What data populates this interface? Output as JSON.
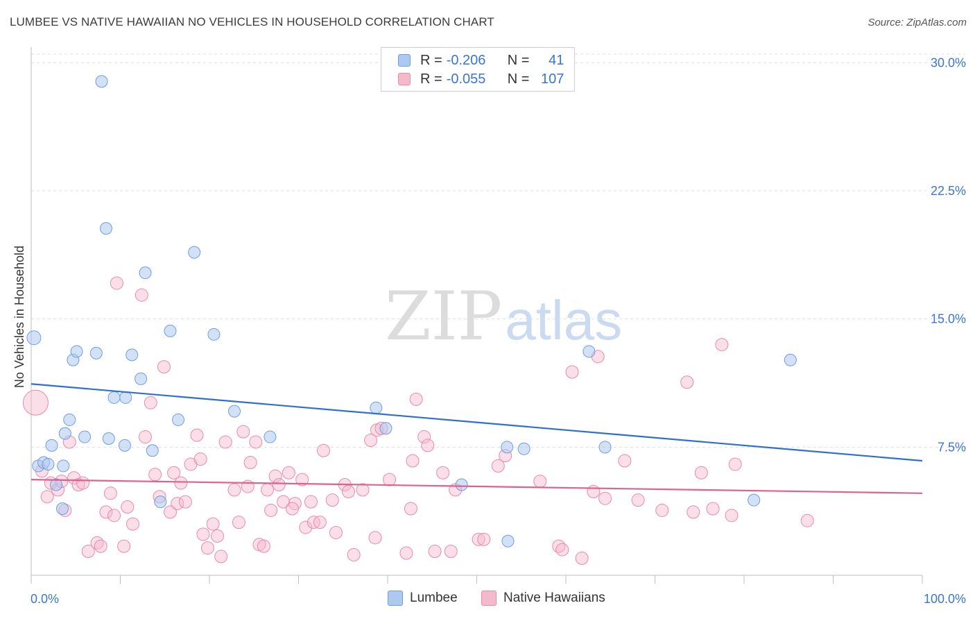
{
  "title": "LUMBEE VS NATIVE HAWAIIAN NO VEHICLES IN HOUSEHOLD CORRELATION CHART",
  "source": "Source: ZipAtlas.com",
  "watermark": {
    "zip": "ZIP",
    "atlas": "atlas"
  },
  "legend": {
    "rows": [
      {
        "r_label": "R = ",
        "r_value": "-0.206",
        "n_label": "N = ",
        "n_value": "41"
      },
      {
        "r_label": "R = ",
        "r_value": "-0.055",
        "n_label": "N = ",
        "n_value": "107"
      }
    ]
  },
  "bottom_legend": {
    "series1": "Lumbee",
    "series2": "Native Hawaiians"
  },
  "colors": {
    "lumbee_fill": "#aec9f0",
    "lumbee_stroke": "#6d9de0",
    "lumbee_line": "#2e6fd0",
    "hawaiian_fill": "#f5b9cc",
    "hawaiian_stroke": "#e98aa9",
    "hawaiian_line": "#e0608e",
    "axis_text": "#3a76d1",
    "grid": "#dedede"
  },
  "chart_data": {
    "type": "scatter",
    "title": "LUMBEE VS NATIVE HAWAIIAN NO VEHICLES IN HOUSEHOLD CORRELATION CHART",
    "xlabel": "",
    "ylabel": "No Vehicles in Household",
    "xlim": [
      0,
      100
    ],
    "ylim": [
      0,
      30.5
    ],
    "x_tick_labels": [
      "0.0%",
      "100.0%"
    ],
    "y_ticks": [
      7.5,
      15.0,
      22.5,
      30.0
    ],
    "y_tick_labels": [
      "7.5%",
      "15.0%",
      "22.5%",
      "30.0%"
    ],
    "series": [
      {
        "name": "Lumbee",
        "r": -0.206,
        "n": 41,
        "trend": {
          "x": [
            0,
            100
          ],
          "y": [
            11.2,
            6.7
          ]
        },
        "points": [
          [
            0.3,
            13.9
          ],
          [
            0.8,
            6.4
          ],
          [
            1.4,
            6.6
          ],
          [
            1.9,
            6.5
          ],
          [
            2.3,
            7.6
          ],
          [
            2.8,
            5.3
          ],
          [
            3.5,
            3.9
          ],
          [
            3.8,
            8.3
          ],
          [
            4.3,
            9.1
          ],
          [
            4.7,
            12.6
          ],
          [
            5.1,
            13.1
          ],
          [
            6.0,
            8.1
          ],
          [
            7.3,
            13.0
          ],
          [
            7.9,
            28.9
          ],
          [
            8.4,
            20.3
          ],
          [
            8.7,
            8.0
          ],
          [
            9.3,
            10.4
          ],
          [
            10.5,
            7.6
          ],
          [
            10.6,
            10.4
          ],
          [
            11.3,
            12.9
          ],
          [
            12.3,
            11.5
          ],
          [
            12.8,
            17.7
          ],
          [
            13.6,
            7.3
          ],
          [
            14.5,
            4.3
          ],
          [
            15.6,
            14.3
          ],
          [
            16.5,
            9.1
          ],
          [
            18.3,
            18.9
          ],
          [
            20.5,
            14.1
          ],
          [
            22.8,
            9.6
          ],
          [
            26.8,
            8.1
          ],
          [
            38.7,
            9.8
          ],
          [
            39.8,
            8.6
          ],
          [
            48.3,
            5.3
          ],
          [
            53.4,
            7.5
          ],
          [
            53.5,
            2.0
          ],
          [
            55.3,
            7.4
          ],
          [
            62.6,
            13.1
          ],
          [
            64.4,
            7.5
          ],
          [
            81.1,
            4.4
          ],
          [
            85.2,
            12.6
          ],
          [
            3.6,
            6.4
          ]
        ]
      },
      {
        "name": "Native Hawaiians",
        "r": -0.055,
        "n": 107,
        "trend": {
          "x": [
            0,
            100
          ],
          "y": [
            5.6,
            4.8
          ]
        },
        "points": [
          [
            0.5,
            10.1
          ],
          [
            1.2,
            6.1
          ],
          [
            1.8,
            4.6
          ],
          [
            2.2,
            5.4
          ],
          [
            3.0,
            5.0
          ],
          [
            3.4,
            5.5
          ],
          [
            3.8,
            3.8
          ],
          [
            4.3,
            7.8
          ],
          [
            4.8,
            5.7
          ],
          [
            5.3,
            5.3
          ],
          [
            5.8,
            5.4
          ],
          [
            6.4,
            1.4
          ],
          [
            7.4,
            1.9
          ],
          [
            7.8,
            1.7
          ],
          [
            8.4,
            3.7
          ],
          [
            8.9,
            4.8
          ],
          [
            9.3,
            3.5
          ],
          [
            9.6,
            17.1
          ],
          [
            10.4,
            1.7
          ],
          [
            10.8,
            4.0
          ],
          [
            11.4,
            3.0
          ],
          [
            12.4,
            16.4
          ],
          [
            12.8,
            8.1
          ],
          [
            13.4,
            10.1
          ],
          [
            13.9,
            5.9
          ],
          [
            14.4,
            4.6
          ],
          [
            14.9,
            12.2
          ],
          [
            15.6,
            3.7
          ],
          [
            16.0,
            6.0
          ],
          [
            16.4,
            4.2
          ],
          [
            16.8,
            5.4
          ],
          [
            17.3,
            4.3
          ],
          [
            17.9,
            6.5
          ],
          [
            18.6,
            8.2
          ],
          [
            19.0,
            6.8
          ],
          [
            19.3,
            2.4
          ],
          [
            19.8,
            1.6
          ],
          [
            20.4,
            3.0
          ],
          [
            20.9,
            2.3
          ],
          [
            21.3,
            1.1
          ],
          [
            21.8,
            7.8
          ],
          [
            22.8,
            5.0
          ],
          [
            23.3,
            3.1
          ],
          [
            23.8,
            8.4
          ],
          [
            24.3,
            5.2
          ],
          [
            24.6,
            6.6
          ],
          [
            25.2,
            7.8
          ],
          [
            25.6,
            1.8
          ],
          [
            26.1,
            1.7
          ],
          [
            26.5,
            5.0
          ],
          [
            26.9,
            3.8
          ],
          [
            27.4,
            5.8
          ],
          [
            27.8,
            5.3
          ],
          [
            28.3,
            4.3
          ],
          [
            28.9,
            6.0
          ],
          [
            29.6,
            4.2
          ],
          [
            30.4,
            5.6
          ],
          [
            30.8,
            2.8
          ],
          [
            31.4,
            4.3
          ],
          [
            31.7,
            3.1
          ],
          [
            32.4,
            3.1
          ],
          [
            32.8,
            7.3
          ],
          [
            33.8,
            4.4
          ],
          [
            34.2,
            2.5
          ],
          [
            35.2,
            5.3
          ],
          [
            35.6,
            4.9
          ],
          [
            36.2,
            1.2
          ],
          [
            37.2,
            5.0
          ],
          [
            38.1,
            7.9
          ],
          [
            38.6,
            2.2
          ],
          [
            38.8,
            8.5
          ],
          [
            39.3,
            8.6
          ],
          [
            40.2,
            5.6
          ],
          [
            42.1,
            1.3
          ],
          [
            42.6,
            3.9
          ],
          [
            42.8,
            6.7
          ],
          [
            43.2,
            10.3
          ],
          [
            44.1,
            8.1
          ],
          [
            44.5,
            7.6
          ],
          [
            45.3,
            1.4
          ],
          [
            46.2,
            6.0
          ],
          [
            47.1,
            1.4
          ],
          [
            47.6,
            5.0
          ],
          [
            50.2,
            2.1
          ],
          [
            50.8,
            2.1
          ],
          [
            52.4,
            6.4
          ],
          [
            53.2,
            7.0
          ],
          [
            57.1,
            5.5
          ],
          [
            59.2,
            1.7
          ],
          [
            59.6,
            1.5
          ],
          [
            60.7,
            11.9
          ],
          [
            61.8,
            1.0
          ],
          [
            63.1,
            4.9
          ],
          [
            63.6,
            12.8
          ],
          [
            64.4,
            4.5
          ],
          [
            66.6,
            6.7
          ],
          [
            68.1,
            4.4
          ],
          [
            70.8,
            3.8
          ],
          [
            73.6,
            11.3
          ],
          [
            74.3,
            3.7
          ],
          [
            75.2,
            6.0
          ],
          [
            76.5,
            3.9
          ],
          [
            77.5,
            13.5
          ],
          [
            79.0,
            6.5
          ],
          [
            87.1,
            3.2
          ],
          [
            78.6,
            3.5
          ],
          [
            29.3,
            3.9
          ]
        ]
      }
    ]
  }
}
